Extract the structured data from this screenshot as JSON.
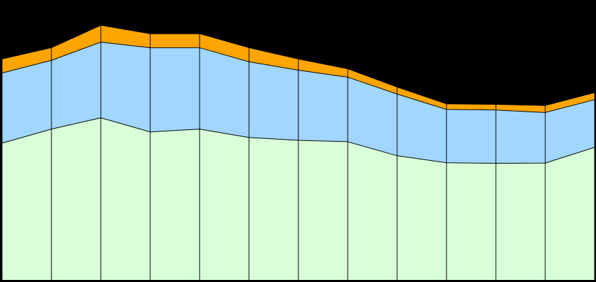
{
  "chart_data": {
    "type": "area",
    "stacked": true,
    "x": [
      1,
      2,
      3,
      4,
      5,
      6,
      7,
      8,
      9,
      10,
      11,
      12,
      13
    ],
    "ylim": [
      0,
      100
    ],
    "grid": "vertical",
    "legend": "none",
    "background": "#000000",
    "series": [
      {
        "color": "#d9ffd9",
        "values": [
          49,
          54,
          58,
          53,
          54,
          51,
          50,
          49.5,
          44.5,
          42,
          41.8,
          41.9,
          47.5
        ]
      },
      {
        "color": "#a0d6ff",
        "values": [
          25,
          24.5,
          27,
          30,
          29,
          27,
          25,
          23,
          22,
          19,
          19,
          18,
          17
        ]
      },
      {
        "color": "#ffa500",
        "values": [
          5,
          4.5,
          6,
          5,
          5,
          5,
          4,
          3,
          2.5,
          2,
          2,
          2.5,
          2.5
        ]
      }
    ]
  }
}
